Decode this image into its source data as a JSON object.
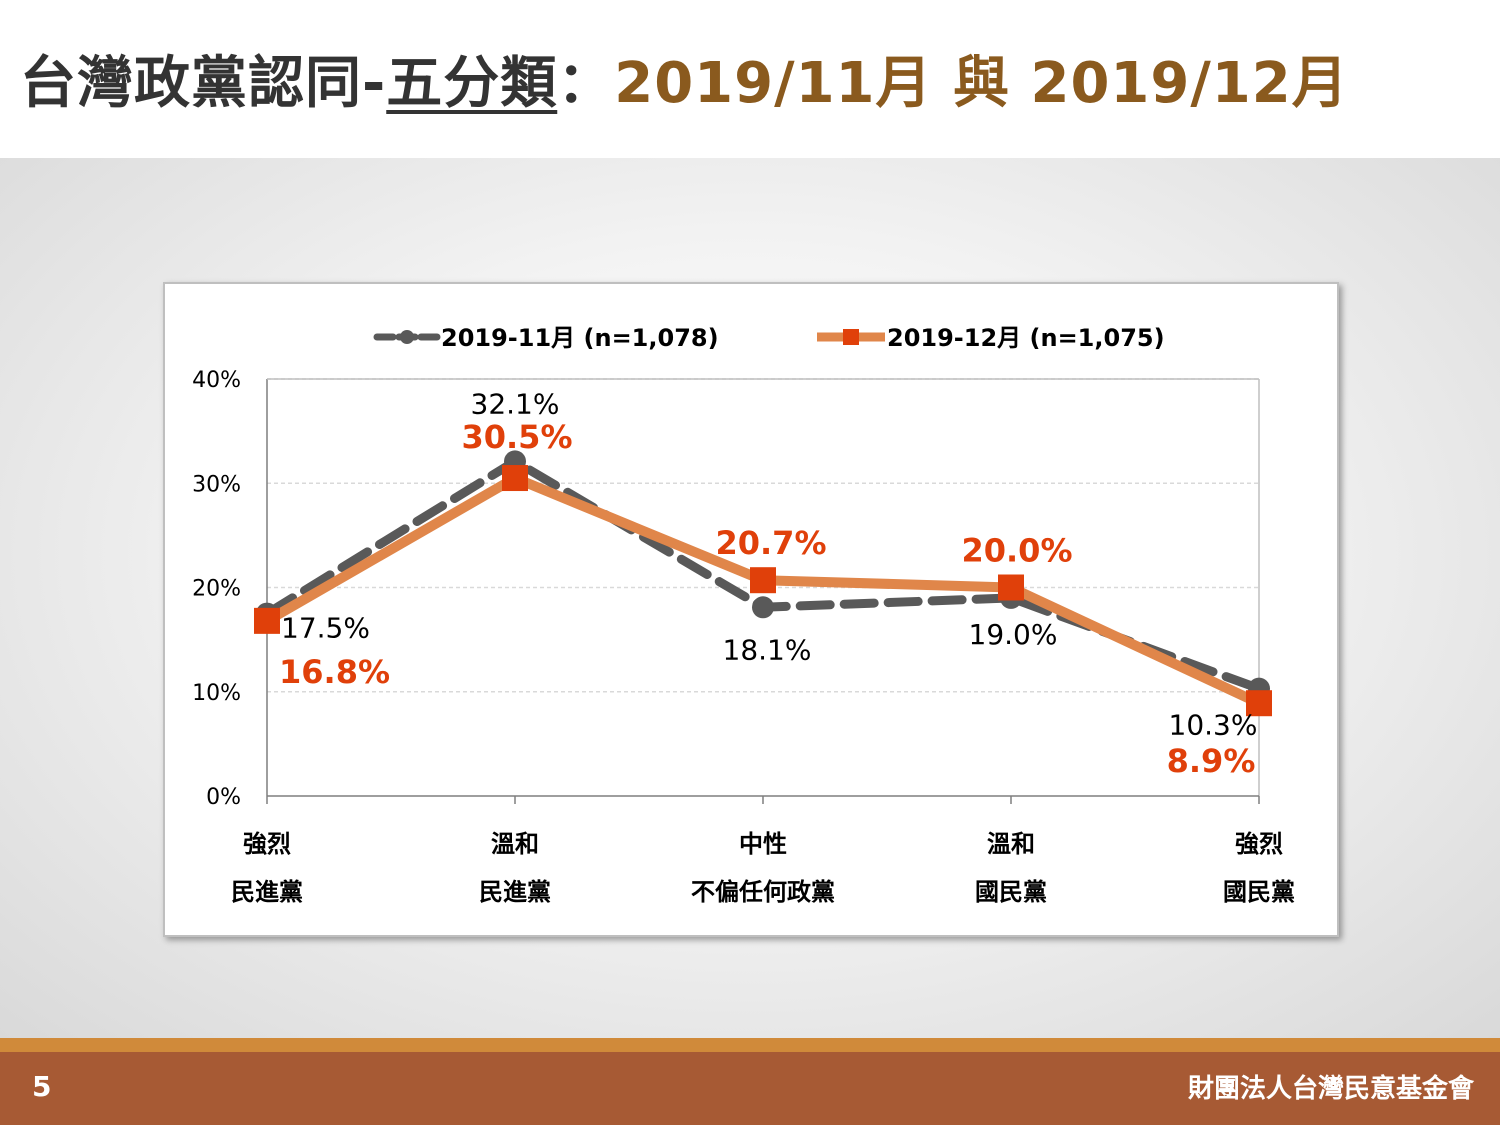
{
  "slide": {
    "title_main": "台灣政黨認同-",
    "title_underlined": "五分類",
    "title_sep": "：",
    "title_dates": "2019/11月 與 2019/12月",
    "page_number": "5",
    "organization": "財團法人台灣民意基金會"
  },
  "colors": {
    "nov_series": "#595959",
    "dec_series": "#e0864a",
    "dec_marker": "#e0400a",
    "title_accent": "#8a5a1e",
    "footer": "#a75a34"
  },
  "chart_data": {
    "type": "line",
    "title": "",
    "xlabel": "",
    "ylabel": "",
    "ylim": [
      0,
      40
    ],
    "yticks": [
      "0%",
      "10%",
      "20%",
      "30%",
      "40%"
    ],
    "grid": true,
    "legend_position": "top",
    "categories": [
      [
        "強烈",
        "民進黨"
      ],
      [
        "溫和",
        "民進黨"
      ],
      [
        "中性",
        "不偏任何政黨"
      ],
      [
        "溫和",
        "國民黨"
      ],
      [
        "強烈",
        "國民黨"
      ]
    ],
    "series": [
      {
        "name": "2019-11月 (n=1,078)",
        "values": [
          17.5,
          32.1,
          18.1,
          19.0,
          10.3
        ],
        "labels": [
          "17.5%",
          "32.1%",
          "18.1%",
          "19.0%",
          "10.3%"
        ],
        "style": "dashed",
        "marker": "circle"
      },
      {
        "name": "2019-12月 (n=1,075)",
        "values": [
          16.8,
          30.5,
          20.7,
          20.0,
          8.9
        ],
        "labels": [
          "16.8%",
          "30.5%",
          "20.7%",
          "20.0%",
          "8.9%"
        ],
        "style": "solid",
        "marker": "square"
      }
    ]
  }
}
